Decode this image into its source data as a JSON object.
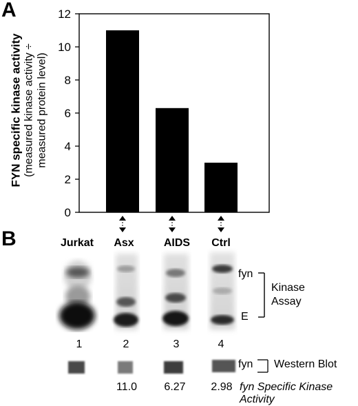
{
  "panel_a": {
    "letter": "A"
  },
  "panel_b": {
    "letter": "B"
  },
  "chart_data": {
    "type": "bar",
    "categories": [
      "Asx",
      "AIDS",
      "Ctrl"
    ],
    "values": [
      11.0,
      6.3,
      3.0
    ],
    "title": "",
    "ylabel_line1": "FYN specific kinase activity",
    "ylabel_line2": "(measured kinase activity ÷",
    "ylabel_line3": "measured protein level)",
    "xlabel": "",
    "ylim": [
      0,
      12
    ],
    "yticks": [
      0,
      2,
      4,
      6,
      8,
      10,
      12
    ],
    "bar_color": "#000000",
    "grid": false
  },
  "blot": {
    "lanes": [
      {
        "label": "Jurkat",
        "number": "1"
      },
      {
        "label": "Asx",
        "number": "2"
      },
      {
        "label": "AIDS",
        "number": "3"
      },
      {
        "label": "Ctrl",
        "number": "4"
      }
    ],
    "band_labels": {
      "fyn": "fyn",
      "e": "E"
    },
    "kinase_assay": {
      "line1": "Kinase",
      "line2": "Assay"
    },
    "western": {
      "fyn": "fyn",
      "label": "Western Blot"
    },
    "activity_values": [
      "11.0",
      "6.27",
      "2.98"
    ],
    "activity_label": "fyn Specific Kinase Activity"
  }
}
